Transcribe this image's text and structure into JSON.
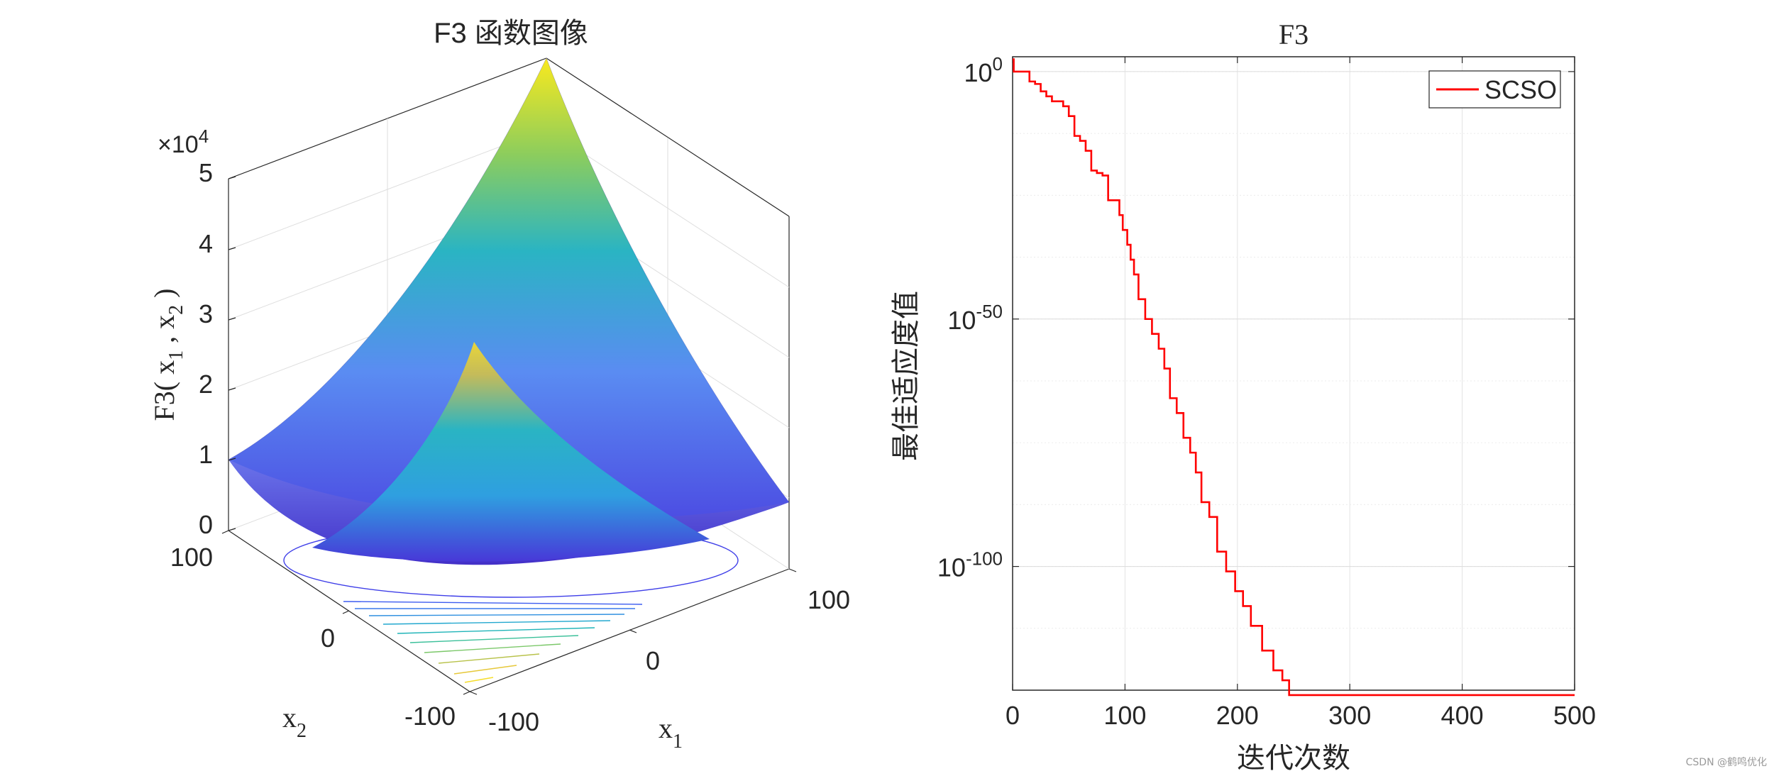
{
  "chart_data": [
    {
      "type": "surface",
      "title": "F3 函数图像",
      "zlabel_parts": [
        "F3( x",
        "1",
        " , x",
        "2",
        " )"
      ],
      "xlabel_parts": [
        "x",
        "1"
      ],
      "ylabel_parts": [
        "x",
        "2"
      ],
      "x_ticks": [
        "-100",
        "0",
        "100"
      ],
      "y_ticks": [
        "-100",
        "0",
        "100"
      ],
      "z_ticks": [
        "0",
        "1",
        "2",
        "3",
        "4",
        "5"
      ],
      "z_exponent_prefix": "×10",
      "z_exponent_power": "4",
      "xlim": [
        -100,
        100
      ],
      "ylim": [
        -100,
        100
      ],
      "zlim": [
        0,
        50000
      ],
      "contour_below": true,
      "grid": true,
      "colormap": "parula",
      "colors": {
        "low": "#3e26a8",
        "mid": "#2ab4c3",
        "high": "#f9e91e"
      }
    },
    {
      "type": "line",
      "title": "F3",
      "xlabel": "迭代次数",
      "ylabel": "最佳适应度值",
      "yscale": "log",
      "xlim": [
        0,
        500
      ],
      "ylim_exponent": [
        -125,
        3
      ],
      "x_ticks": [
        "0",
        "100",
        "200",
        "300",
        "400",
        "500"
      ],
      "y_ticks": [
        {
          "base": "10",
          "exp": "0"
        },
        {
          "base": "10",
          "exp": "-50"
        },
        {
          "base": "10",
          "exp": "-100"
        }
      ],
      "grid": true,
      "legend_position": "top-right",
      "series": [
        {
          "name": "SCSO",
          "color": "#ff0000",
          "points_log10": [
            [
              0,
              2.5
            ],
            [
              1,
              0
            ],
            [
              12,
              0
            ],
            [
              15,
              -2
            ],
            [
              20,
              -2.5
            ],
            [
              25,
              -4
            ],
            [
              30,
              -5
            ],
            [
              35,
              -6
            ],
            [
              45,
              -7
            ],
            [
              50,
              -9
            ],
            [
              55,
              -13
            ],
            [
              60,
              -14
            ],
            [
              65,
              -16
            ],
            [
              70,
              -20
            ],
            [
              75,
              -20.5
            ],
            [
              80,
              -21
            ],
            [
              85,
              -26
            ],
            [
              92,
              -26
            ],
            [
              95,
              -29
            ],
            [
              98,
              -32
            ],
            [
              102,
              -35
            ],
            [
              105,
              -38
            ],
            [
              108,
              -41
            ],
            [
              112,
              -46
            ],
            [
              118,
              -50
            ],
            [
              124,
              -53
            ],
            [
              130,
              -56
            ],
            [
              135,
              -60
            ],
            [
              140,
              -66
            ],
            [
              146,
              -69
            ],
            [
              152,
              -74
            ],
            [
              158,
              -77
            ],
            [
              163,
              -81
            ],
            [
              168,
              -87
            ],
            [
              175,
              -90
            ],
            [
              182,
              -97
            ],
            [
              190,
              -101
            ],
            [
              198,
              -105
            ],
            [
              205,
              -108
            ],
            [
              212,
              -112
            ],
            [
              222,
              -117
            ],
            [
              232,
              -121
            ],
            [
              240,
              -123
            ],
            [
              246,
              -126
            ],
            [
              500,
              -126
            ]
          ]
        }
      ]
    }
  ],
  "watermark": "CSDN @鹤鸣优化"
}
